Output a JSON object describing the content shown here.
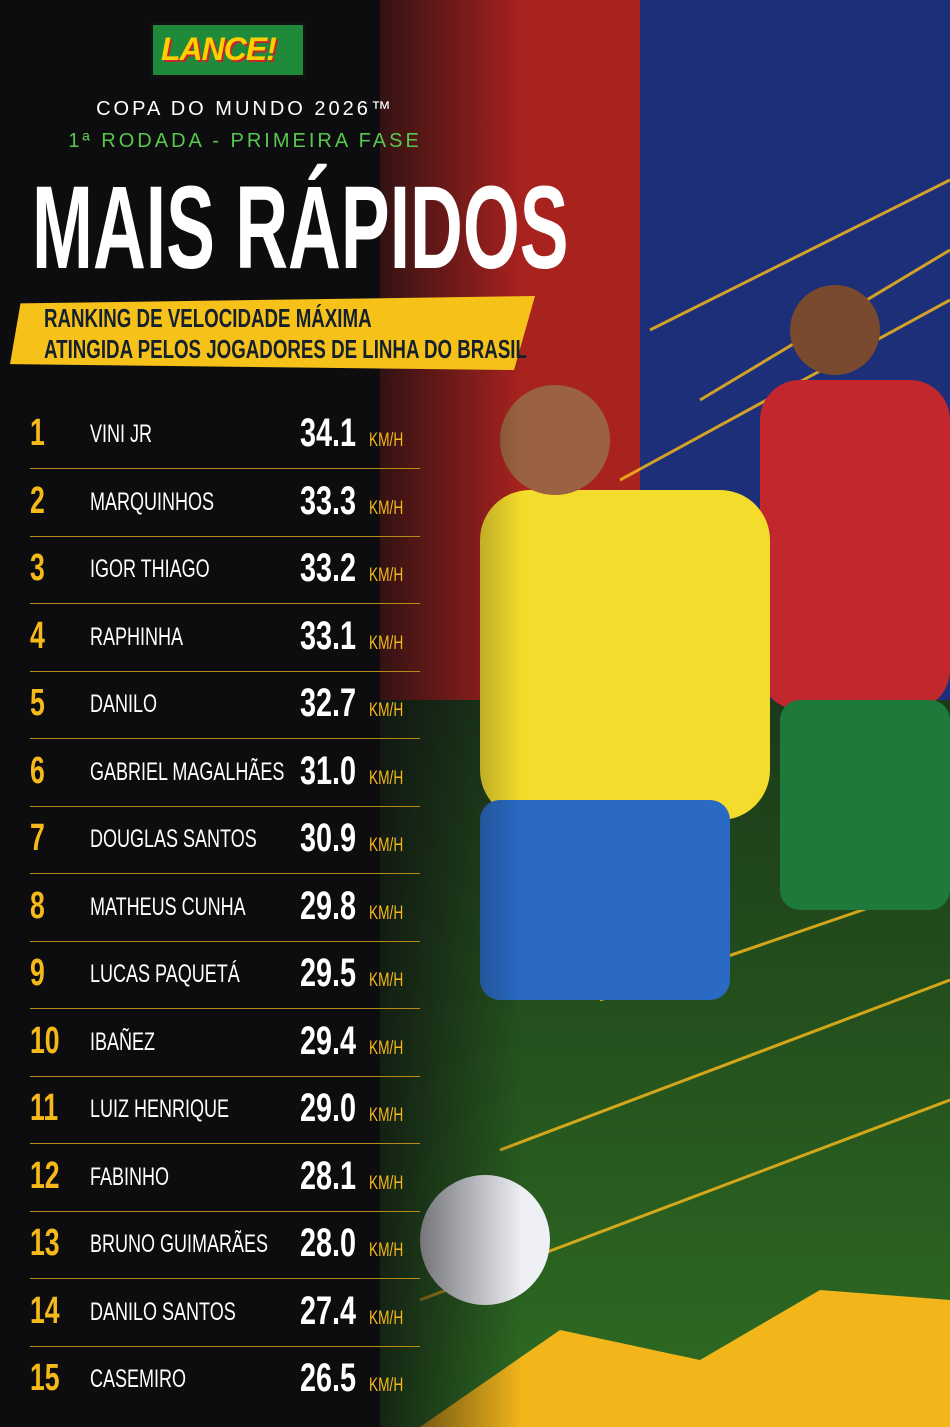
{
  "header": {
    "logo": "LANCE!",
    "competition": "COPA DO MUNDO 2026™",
    "round": "1ª RODADA - PRIMEIRA FASE",
    "title": "MAIS RÁPIDOS",
    "subtitle_lines": [
      "RANKING DE VELOCIDADE MÁXIMA",
      "ATINGIDA PELOS JOGADORES DE LINHA DO BRASIL"
    ]
  },
  "table": {
    "unit": "KM/H",
    "rows": [
      [
        "1",
        "VINI JR",
        "34.1"
      ],
      [
        "2",
        "MARQUINHOS",
        "33.3"
      ],
      [
        "3",
        "IGOR THIAGO",
        "33.2"
      ],
      [
        "4",
        "RAPHINHA",
        "33.1"
      ],
      [
        "5",
        "DANILO",
        "32.7"
      ],
      [
        "6",
        "GABRIEL MAGALHÃES",
        "31.0"
      ],
      [
        "7",
        "DOUGLAS SANTOS",
        "30.9"
      ],
      [
        "8",
        "MATHEUS CUNHA",
        "29.8"
      ],
      [
        "9",
        "LUCAS PAQUETÁ",
        "29.5"
      ],
      [
        "10",
        "IBAÑEZ",
        "29.4"
      ],
      [
        "11",
        "LUIZ HENRIQUE",
        "29.0"
      ],
      [
        "12",
        "FABINHO",
        "28.1"
      ],
      [
        "13",
        "BRUNO GUIMARÃES",
        "28.0"
      ],
      [
        "14",
        "DANILO SANTOS",
        "27.4"
      ],
      [
        "15",
        "CASEMIRO",
        "26.5"
      ]
    ]
  }
}
